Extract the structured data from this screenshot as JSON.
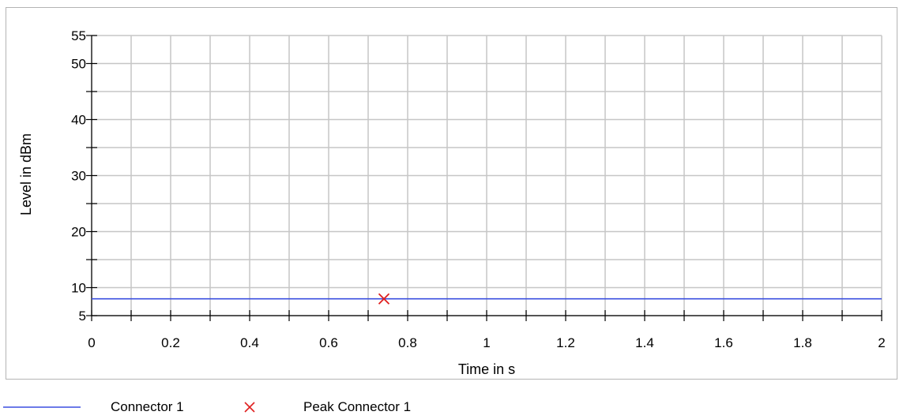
{
  "chart_data": {
    "type": "line",
    "xlabel": "Time in s",
    "ylabel": "Level in dBm",
    "xlim": [
      0,
      2
    ],
    "ylim": [
      5,
      55
    ],
    "x_ticks": [
      "0",
      "0.2",
      "0.4",
      "0.6",
      "0.8",
      "1",
      "1.2",
      "1.4",
      "1.6",
      "1.8",
      "2"
    ],
    "x_tick_values": [
      0,
      0.2,
      0.4,
      0.6,
      0.8,
      1,
      1.2,
      1.4,
      1.6,
      1.8,
      2
    ],
    "x_minor_step": 0.1,
    "y_ticks": [
      "5",
      "10",
      "20",
      "30",
      "40",
      "50",
      "55"
    ],
    "y_tick_values": [
      5,
      10,
      20,
      30,
      40,
      50,
      55
    ],
    "y_minor_values": [
      5,
      10,
      15,
      20,
      25,
      30,
      35,
      40,
      45,
      50,
      55
    ],
    "grid": true,
    "legend_position": "bottom-left",
    "series": [
      {
        "name": "Connector 1",
        "type": "line",
        "color": "#3b4fe0",
        "x": [
          0,
          2
        ],
        "y": [
          8,
          8
        ]
      },
      {
        "name": "Peak Connector 1",
        "type": "marker",
        "marker": "x",
        "color": "#e02020",
        "x": [
          0.74
        ],
        "y": [
          8
        ]
      }
    ]
  },
  "legend": {
    "items": [
      {
        "label": "Connector 1",
        "icon": "line-icon",
        "color": "#3b4fe0"
      },
      {
        "label": "Peak Connector 1",
        "icon": "x-marker-icon",
        "color": "#e02020"
      }
    ]
  }
}
